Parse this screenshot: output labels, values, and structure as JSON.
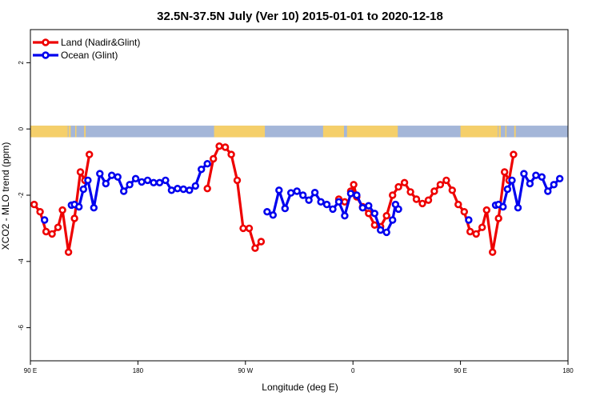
{
  "chart_data": {
    "type": "line",
    "title": "32.5N-37.5N July (Ver 10)   2015-01-01 to 2020-12-18",
    "xlabel": "Longitude (deg E)",
    "ylabel": "XCO2 - MLO trend (ppm)",
    "xlim": [
      90,
      450
    ],
    "ylim": [
      -7,
      3
    ],
    "x_ticks": [
      {
        "value": 90,
        "label": "90 E"
      },
      {
        "value": 162,
        "label": "180"
      },
      {
        "value": 234,
        "label": "90 W"
      },
      {
        "value": 306,
        "label": "0"
      },
      {
        "value": 378,
        "label": "90 E"
      },
      {
        "value": 450,
        "label": "180"
      }
    ],
    "y_ticks": [
      {
        "value": 2,
        "label": "2"
      },
      {
        "value": 0,
        "label": "0"
      },
      {
        "value": -2,
        "label": "-2"
      },
      {
        "value": -4,
        "label": "-4"
      },
      {
        "value": -6,
        "label": "-6"
      }
    ],
    "grid": false,
    "legend_position": "top-left",
    "surface_strip": {
      "y_range": [
        -0.25,
        0.1
      ],
      "ocean_color": "#a4b6d8",
      "land_color": "#f5cf6a",
      "land_segments": [
        [
          90,
          115
        ],
        [
          115.5,
          117
        ],
        [
          120,
          120.8
        ],
        [
          126,
          127
        ],
        [
          213,
          247
        ],
        [
          286,
          300
        ],
        [
          302,
          336
        ],
        [
          378,
          403
        ],
        [
          403.5,
          405
        ],
        [
          408,
          408.8
        ],
        [
          414,
          415
        ]
      ]
    },
    "series": [
      {
        "name": "Land (Nadir&Glint)",
        "color": "#ee0000",
        "points": [
          [
            92.5,
            -2.28
          ],
          [
            96.5,
            -2.5
          ],
          [
            100.5,
            -3.1
          ],
          [
            104.5,
            -3.17
          ],
          [
            108.5,
            -2.97
          ],
          [
            111.5,
            -2.45
          ],
          [
            115.5,
            -3.72
          ],
          [
            119.5,
            -2.7
          ],
          [
            123.5,
            -1.3
          ],
          [
            126.5,
            -1.55
          ],
          [
            129.5,
            -0.77
          ],
          null,
          [
            208.5,
            -1.8
          ],
          [
            212.5,
            -0.9
          ],
          [
            216.5,
            -0.52
          ],
          [
            220.5,
            -0.55
          ],
          [
            224.5,
            -0.77
          ],
          [
            228.5,
            -1.55
          ],
          [
            232.5,
            -3.0
          ],
          [
            236.5,
            -3.0
          ],
          [
            240.5,
            -3.6
          ],
          [
            244.5,
            -3.4
          ],
          null,
          [
            296.5,
            -2.12
          ],
          [
            300.5,
            -2.2
          ],
          null,
          [
            304.5,
            -1.88
          ],
          [
            306.5,
            -1.68
          ],
          [
            308.5,
            -2.05
          ],
          [
            312.5,
            -2.35
          ],
          [
            316.5,
            -2.55
          ],
          [
            320.5,
            -2.9
          ],
          [
            324.5,
            -2.95
          ],
          [
            328.5,
            -2.62
          ],
          [
            332.5,
            -2.0
          ],
          [
            336.5,
            -1.75
          ],
          [
            340.5,
            -1.62
          ],
          [
            344.5,
            -1.9
          ],
          [
            348.5,
            -2.12
          ],
          [
            352.5,
            -2.25
          ],
          [
            356.5,
            -2.15
          ],
          [
            360.5,
            -1.88
          ],
          [
            364.5,
            -1.68
          ],
          [
            368.5,
            -1.55
          ],
          [
            372.5,
            -1.85
          ],
          [
            376.5,
            -2.28
          ],
          [
            380.5,
            -2.5
          ],
          [
            384.5,
            -3.1
          ],
          [
            388.5,
            -3.17
          ],
          [
            392.5,
            -2.97
          ],
          [
            395.5,
            -2.45
          ],
          [
            399.5,
            -3.72
          ],
          [
            403.5,
            -2.7
          ],
          [
            407.5,
            -1.3
          ],
          [
            410.5,
            -1.55
          ],
          [
            413.5,
            -0.77
          ]
        ]
      },
      {
        "name": "Ocean (Glint)",
        "color": "#0000ee",
        "points": [
          [
            99.5,
            -2.75
          ],
          null,
          [
            117.5,
            -2.3
          ],
          [
            119.5,
            -2.28
          ],
          [
            122.5,
            -2.35
          ],
          [
            125.5,
            -1.82
          ],
          [
            128.5,
            -1.55
          ],
          [
            132.5,
            -2.38
          ],
          [
            136.5,
            -1.35
          ],
          [
            140.5,
            -1.65
          ],
          [
            144.5,
            -1.4
          ],
          [
            148.5,
            -1.45
          ],
          [
            152.5,
            -1.88
          ],
          [
            156.5,
            -1.68
          ],
          [
            160.5,
            -1.5
          ],
          [
            164.5,
            -1.6
          ],
          [
            168.5,
            -1.55
          ],
          [
            172.5,
            -1.62
          ],
          [
            176.5,
            -1.62
          ],
          [
            180.5,
            -1.55
          ],
          [
            184.5,
            -1.85
          ],
          [
            188.5,
            -1.8
          ],
          [
            192.5,
            -1.82
          ],
          [
            196.5,
            -1.85
          ],
          [
            200.5,
            -1.72
          ],
          [
            204.5,
            -1.22
          ],
          [
            208.5,
            -1.05
          ],
          null,
          [
            248.5,
            -2.5
          ],
          [
            252.5,
            -2.6
          ],
          [
            256.5,
            -1.85
          ],
          [
            260.5,
            -2.4
          ],
          [
            264.5,
            -1.93
          ],
          [
            268.5,
            -1.88
          ],
          [
            272.5,
            -2.0
          ],
          [
            276.5,
            -2.15
          ],
          [
            280.5,
            -1.92
          ],
          [
            284.5,
            -2.2
          ],
          [
            288.5,
            -2.28
          ],
          [
            292.5,
            -2.42
          ],
          [
            296.5,
            -2.2
          ],
          [
            300.5,
            -2.62
          ],
          [
            304.5,
            -1.95
          ],
          [
            308.5,
            -2.0
          ],
          [
            312.5,
            -2.38
          ],
          [
            316.5,
            -2.32
          ],
          [
            320.5,
            -2.55
          ],
          [
            324.5,
            -3.05
          ],
          [
            328.5,
            -3.12
          ],
          [
            332.5,
            -2.75
          ],
          [
            334.5,
            -2.28
          ],
          [
            336.5,
            -2.42
          ],
          null,
          [
            383.5,
            -2.75
          ],
          null,
          [
            401.5,
            -2.3
          ],
          [
            403.5,
            -2.28
          ],
          [
            406.5,
            -2.35
          ],
          [
            409.5,
            -1.82
          ],
          [
            412.5,
            -1.55
          ],
          [
            416.5,
            -2.38
          ],
          [
            420.5,
            -1.35
          ],
          [
            424.5,
            -1.65
          ],
          [
            428.5,
            -1.4
          ],
          [
            432.5,
            -1.45
          ],
          [
            436.5,
            -1.88
          ],
          [
            440.5,
            -1.68
          ],
          [
            444.5,
            -1.5
          ]
        ]
      }
    ]
  }
}
